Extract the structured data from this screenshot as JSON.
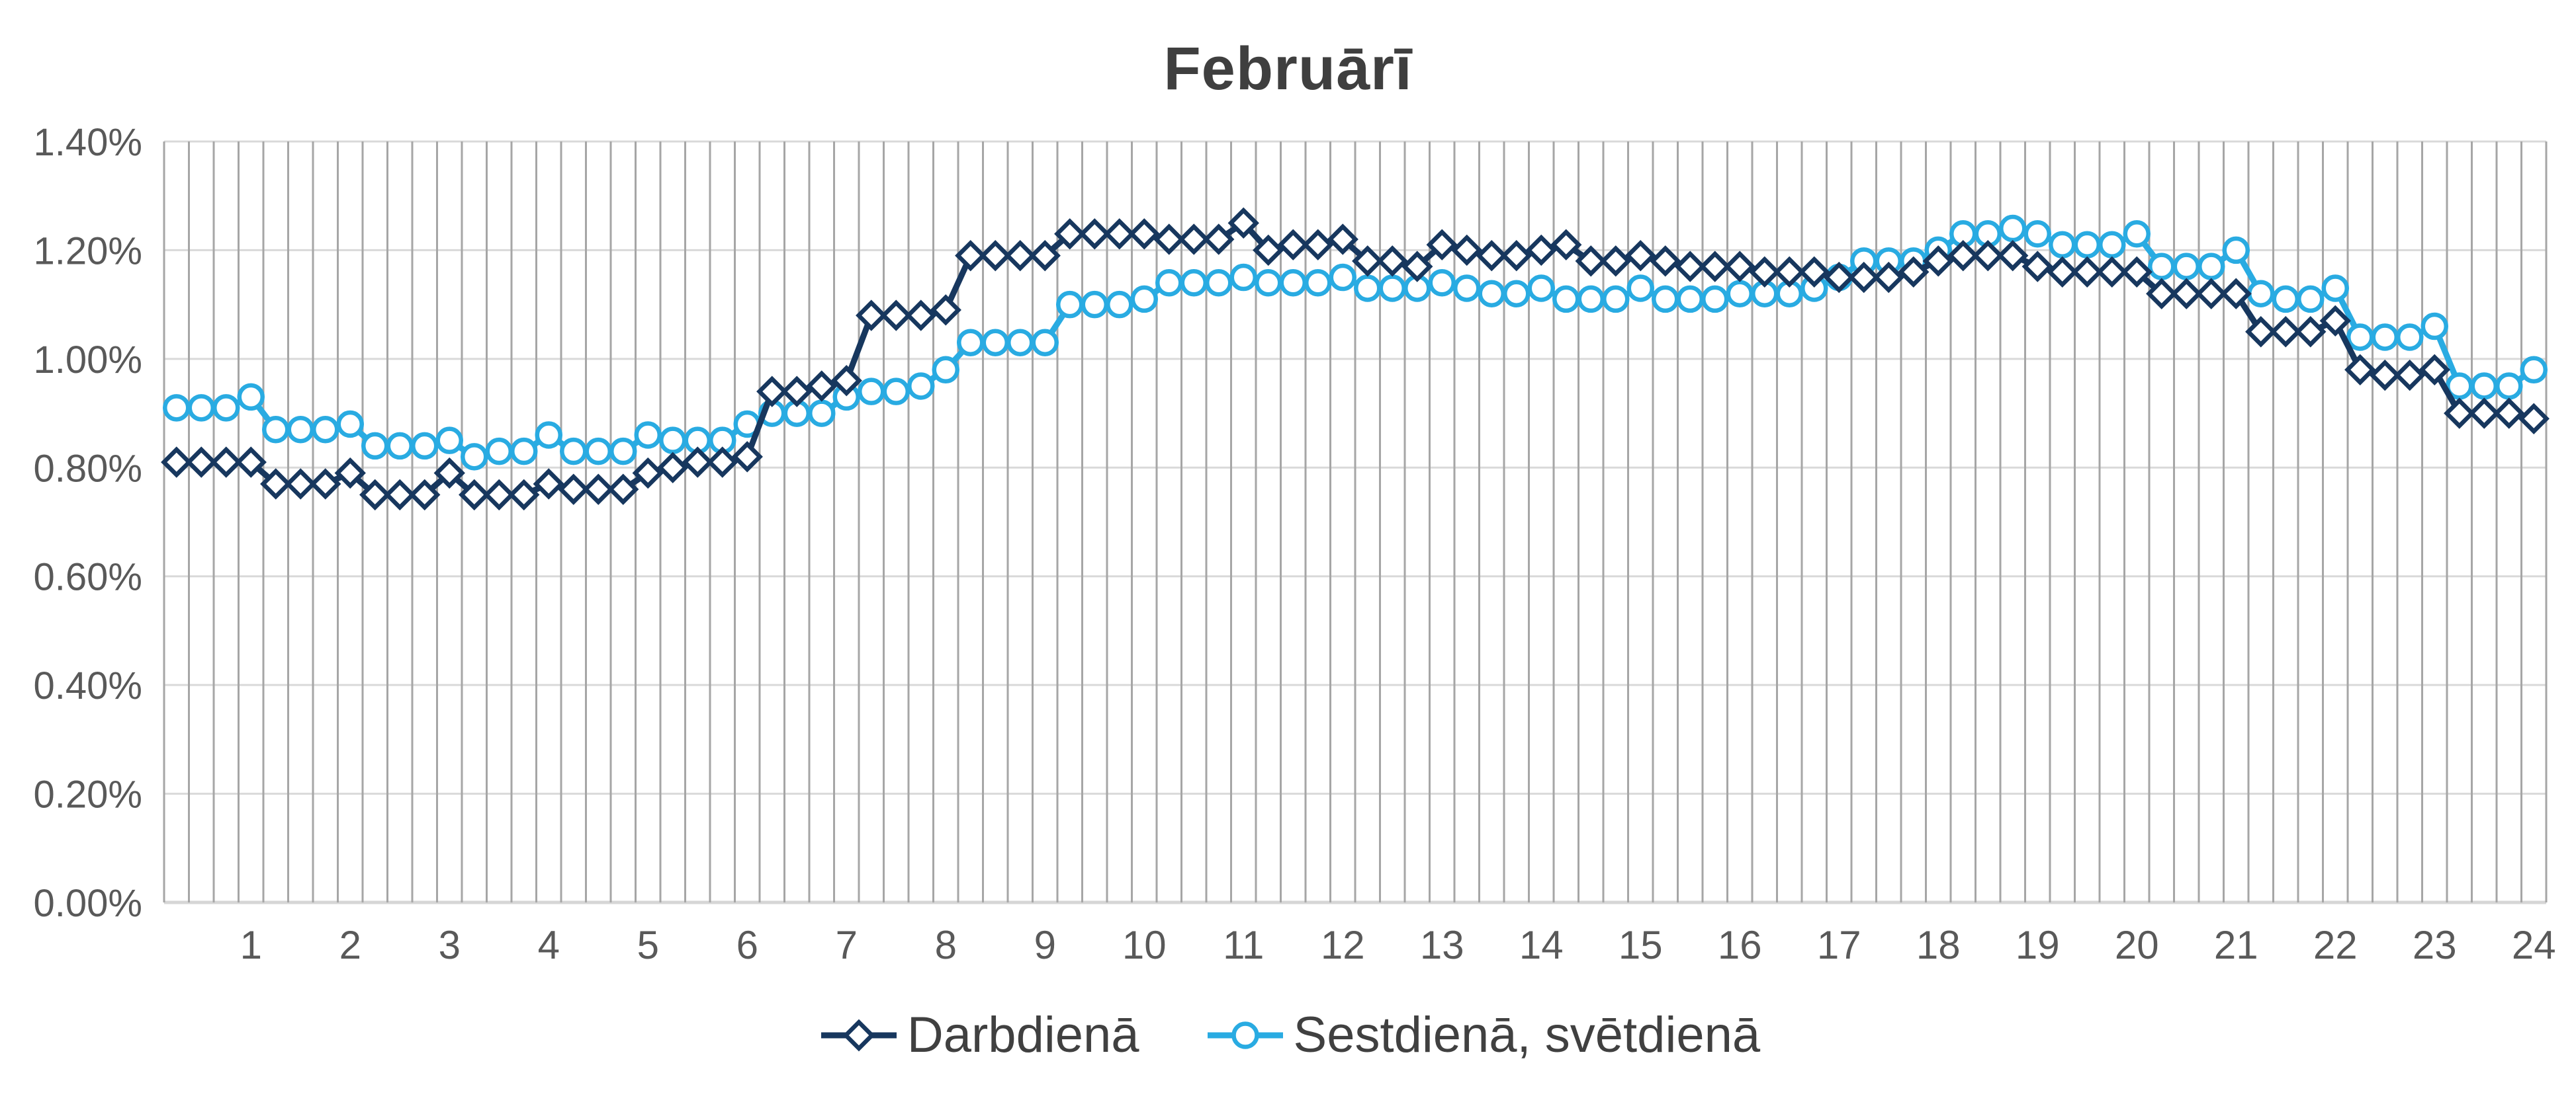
{
  "chart_data": {
    "type": "line",
    "title": "Februārī",
    "x_axis": {
      "tick_labels": [
        "1",
        "2",
        "3",
        "4",
        "5",
        "6",
        "7",
        "8",
        "9",
        "10",
        "11",
        "12",
        "13",
        "14",
        "15",
        "16",
        "17",
        "18",
        "19",
        "20",
        "21",
        "22",
        "23",
        "24"
      ],
      "points_per_hour": 4,
      "first_point_hour": 0.25,
      "range_hours": [
        0,
        24
      ]
    },
    "y_axis": {
      "tick_labels": [
        "0.00%",
        "0.20%",
        "0.40%",
        "0.60%",
        "0.80%",
        "1.00%",
        "1.20%",
        "1.40%"
      ],
      "min": 0,
      "max": 1.4,
      "step": 0.2,
      "unit": "%"
    },
    "grid": {
      "vertical": true,
      "horizontal": true
    },
    "legend_position": "bottom",
    "series": [
      {
        "name": "Darbdienā",
        "color": "#17375E",
        "marker": "diamond",
        "values": [
          0.81,
          0.81,
          0.81,
          0.81,
          0.77,
          0.77,
          0.77,
          0.79,
          0.75,
          0.75,
          0.75,
          0.79,
          0.75,
          0.75,
          0.75,
          0.77,
          0.76,
          0.76,
          0.76,
          0.79,
          0.8,
          0.81,
          0.81,
          0.82,
          0.94,
          0.94,
          0.95,
          0.96,
          1.08,
          1.08,
          1.08,
          1.09,
          1.19,
          1.19,
          1.19,
          1.19,
          1.23,
          1.23,
          1.23,
          1.23,
          1.22,
          1.22,
          1.22,
          1.25,
          1.2,
          1.21,
          1.21,
          1.22,
          1.18,
          1.18,
          1.17,
          1.21,
          1.2,
          1.19,
          1.19,
          1.2,
          1.21,
          1.18,
          1.18,
          1.19,
          1.18,
          1.17,
          1.17,
          1.17,
          1.16,
          1.16,
          1.16,
          1.15,
          1.15,
          1.15,
          1.16,
          1.18,
          1.19,
          1.19,
          1.19,
          1.17,
          1.16,
          1.16,
          1.16,
          1.16,
          1.12,
          1.12,
          1.12,
          1.12,
          1.05,
          1.05,
          1.05,
          1.07,
          0.98,
          0.97,
          0.97,
          0.98,
          0.9,
          0.9,
          0.9,
          0.89
        ]
      },
      {
        "name": "Sestdienā, svētdienā",
        "color": "#29ABE2",
        "marker": "circle",
        "values": [
          0.91,
          0.91,
          0.91,
          0.93,
          0.87,
          0.87,
          0.87,
          0.88,
          0.84,
          0.84,
          0.84,
          0.85,
          0.82,
          0.83,
          0.83,
          0.86,
          0.83,
          0.83,
          0.83,
          0.86,
          0.85,
          0.85,
          0.85,
          0.88,
          0.9,
          0.9,
          0.9,
          0.93,
          0.94,
          0.94,
          0.95,
          0.98,
          1.03,
          1.03,
          1.03,
          1.03,
          1.1,
          1.1,
          1.1,
          1.11,
          1.14,
          1.14,
          1.14,
          1.15,
          1.14,
          1.14,
          1.14,
          1.15,
          1.13,
          1.13,
          1.13,
          1.14,
          1.13,
          1.12,
          1.12,
          1.13,
          1.11,
          1.11,
          1.11,
          1.13,
          1.11,
          1.11,
          1.11,
          1.12,
          1.12,
          1.12,
          1.13,
          1.15,
          1.18,
          1.18,
          1.18,
          1.2,
          1.23,
          1.23,
          1.24,
          1.23,
          1.21,
          1.21,
          1.21,
          1.23,
          1.17,
          1.17,
          1.17,
          1.2,
          1.12,
          1.11,
          1.11,
          1.13,
          1.04,
          1.04,
          1.04,
          1.06,
          0.95,
          0.95,
          0.95,
          0.98
        ]
      }
    ]
  },
  "styles": {
    "vertical_grid_color": "#A6A6A6",
    "horizontal_grid_color": "#D9D9D9",
    "axis_line_color": "#D6D6D6",
    "tick_text_color": "#595959",
    "title_color": "#3F3F3F",
    "legend_text_color": "#404040",
    "background": "#FFFFFF"
  }
}
